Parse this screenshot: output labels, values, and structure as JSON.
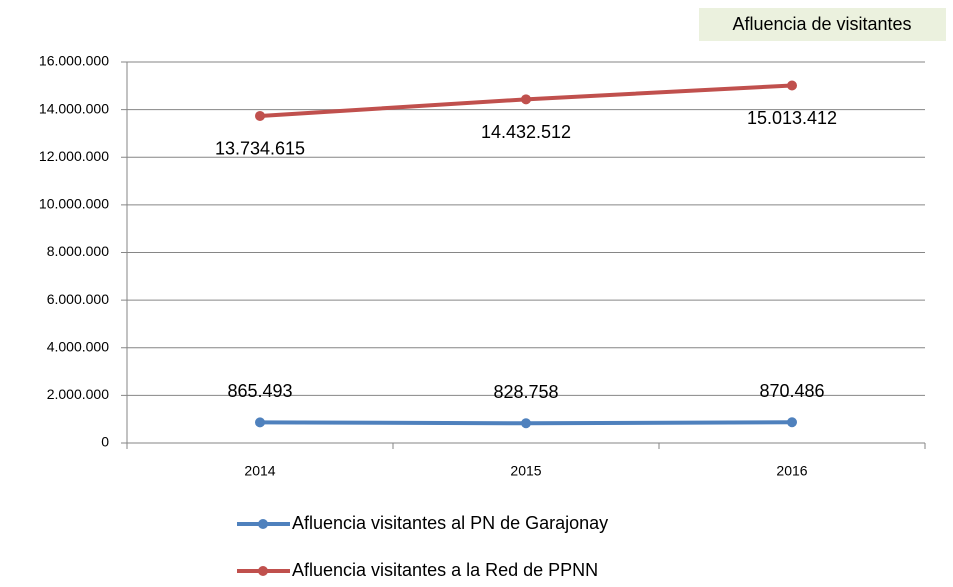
{
  "chart_data": {
    "type": "line",
    "title": "Afluencia de visitantes",
    "categories": [
      "2014",
      "2015",
      "2016"
    ],
    "series": [
      {
        "name": "Afluencia visitantes al PN de Garajonay",
        "color": "#4f81bd",
        "values": [
          865493,
          828758,
          870486
        ],
        "value_labels": [
          "865.493",
          "828.758",
          "870.486"
        ]
      },
      {
        "name": "Afluencia visitantes a la Red de PPNN",
        "color": "#c0504d",
        "values": [
          13734615,
          14432512,
          15013412
        ],
        "value_labels": [
          "13.734.615",
          "14.432.512",
          "15.013.412"
        ]
      }
    ],
    "ylim": [
      0,
      16000000
    ],
    "yticks": [
      0,
      {
        "value": 2000000,
        "label": "2.000.000"
      },
      {
        "value": 4000000,
        "label": "4.000.000"
      },
      {
        "value": 6000000,
        "label": "6.000.000"
      },
      {
        "value": 8000000,
        "label": "8.000.000"
      },
      {
        "value": 10000000,
        "label": "10.000.000"
      },
      {
        "value": 12000000,
        "label": "12.000.000"
      },
      {
        "value": 14000000,
        "label": "14.000.000"
      },
      {
        "value": 16000000,
        "label": "16.000.000"
      }
    ],
    "grid": true,
    "legend": "bottom"
  }
}
